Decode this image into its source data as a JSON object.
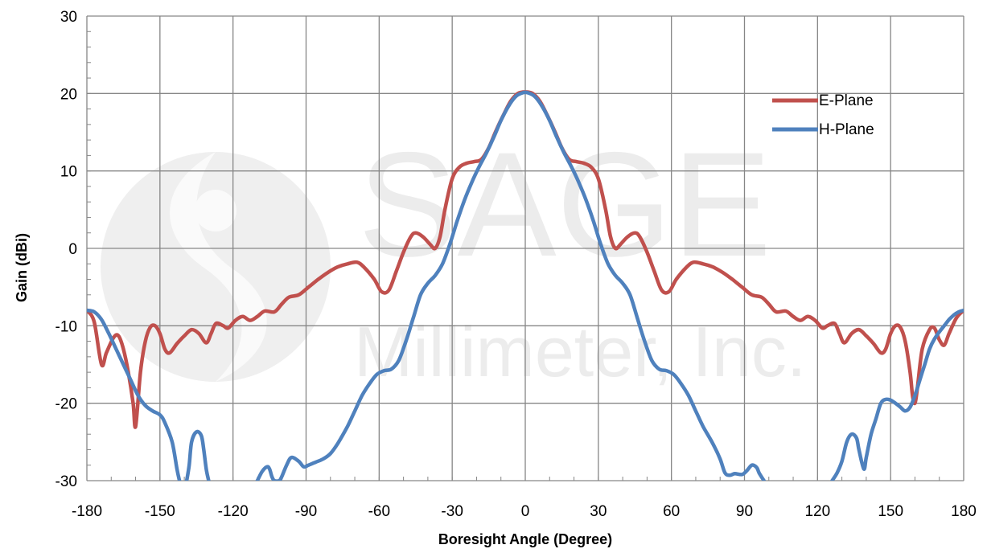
{
  "watermark": {
    "brand": "SAGE",
    "company": "Millimeter, Inc."
  },
  "colors": {
    "e_plane": "#c0504d",
    "h_plane": "#4f81bd",
    "grid": "#868686"
  },
  "chart_data": {
    "type": "line",
    "xlabel": "Boresight Angle (Degree)",
    "ylabel": "Gain (dBi)",
    "xlim": [
      -180,
      180
    ],
    "ylim": [
      -30,
      30
    ],
    "xticks": [
      -180,
      -150,
      -120,
      -90,
      -60,
      -30,
      0,
      30,
      60,
      90,
      120,
      150,
      180
    ],
    "yticks": [
      -30,
      -20,
      -10,
      0,
      10,
      20,
      30
    ],
    "grid": true,
    "legend_position": "top-right",
    "series": [
      {
        "name": "E-Plane",
        "color": "#c0504d",
        "points": [
          [
            -180,
            -8
          ],
          [
            -177,
            -9.5
          ],
          [
            -174,
            -15
          ],
          [
            -172,
            -13.5
          ],
          [
            -169,
            -11.5
          ],
          [
            -167,
            -11.3
          ],
          [
            -165,
            -13
          ],
          [
            -163,
            -16
          ],
          [
            -161,
            -20
          ],
          [
            -160,
            -23
          ],
          [
            -158,
            -16
          ],
          [
            -156,
            -12
          ],
          [
            -154,
            -10.2
          ],
          [
            -152,
            -10
          ],
          [
            -150,
            -11
          ],
          [
            -148,
            -13
          ],
          [
            -146,
            -13.5
          ],
          [
            -143,
            -12.3
          ],
          [
            -140,
            -11.3
          ],
          [
            -137,
            -10.5
          ],
          [
            -134,
            -11
          ],
          [
            -131,
            -12.2
          ],
          [
            -129,
            -11
          ],
          [
            -127,
            -9.7
          ],
          [
            -124,
            -10
          ],
          [
            -122,
            -10.3
          ],
          [
            -119,
            -9.3
          ],
          [
            -116,
            -8.8
          ],
          [
            -113,
            -9.3
          ],
          [
            -110,
            -8.8
          ],
          [
            -107,
            -8.1
          ],
          [
            -103,
            -8.2
          ],
          [
            -100,
            -7.2
          ],
          [
            -97,
            -6.3
          ],
          [
            -93,
            -6
          ],
          [
            -89,
            -5
          ],
          [
            -85,
            -4
          ],
          [
            -81,
            -3.1
          ],
          [
            -77,
            -2.4
          ],
          [
            -73,
            -2
          ],
          [
            -69,
            -1.8
          ],
          [
            -66,
            -2.5
          ],
          [
            -62,
            -4
          ],
          [
            -59,
            -5.6
          ],
          [
            -56,
            -5.4
          ],
          [
            -53,
            -3
          ],
          [
            -50,
            -0.5
          ],
          [
            -47,
            1.5
          ],
          [
            -45,
            2
          ],
          [
            -42,
            1.5
          ],
          [
            -39,
            0.5
          ],
          [
            -37,
            0
          ],
          [
            -35,
            1.5
          ],
          [
            -33,
            5
          ],
          [
            -30,
            9
          ],
          [
            -27,
            10.5
          ],
          [
            -24,
            11
          ],
          [
            -21,
            11.2
          ],
          [
            -18,
            11.5
          ],
          [
            -15,
            13
          ],
          [
            -12,
            15.2
          ],
          [
            -9,
            17.2
          ],
          [
            -6,
            19
          ],
          [
            -3,
            20
          ],
          [
            0,
            20.2
          ],
          [
            3,
            20
          ],
          [
            6,
            19
          ],
          [
            9,
            17.2
          ],
          [
            12,
            15.2
          ],
          [
            15,
            13
          ],
          [
            18,
            11.5
          ],
          [
            21,
            11.2
          ],
          [
            24,
            11
          ],
          [
            27,
            10.5
          ],
          [
            30,
            9
          ],
          [
            33,
            5
          ],
          [
            35,
            1.5
          ],
          [
            37,
            0
          ],
          [
            39,
            0.5
          ],
          [
            42,
            1.5
          ],
          [
            45,
            2
          ],
          [
            47,
            1.5
          ],
          [
            50,
            -0.5
          ],
          [
            53,
            -3
          ],
          [
            56,
            -5.4
          ],
          [
            59,
            -5.6
          ],
          [
            62,
            -4
          ],
          [
            66,
            -2.5
          ],
          [
            69,
            -1.8
          ],
          [
            73,
            -2
          ],
          [
            77,
            -2.4
          ],
          [
            81,
            -3.1
          ],
          [
            85,
            -4
          ],
          [
            89,
            -5
          ],
          [
            93,
            -6
          ],
          [
            97,
            -6.3
          ],
          [
            100,
            -7.2
          ],
          [
            103,
            -8.2
          ],
          [
            107,
            -8.1
          ],
          [
            110,
            -8.8
          ],
          [
            113,
            -9.3
          ],
          [
            116,
            -8.8
          ],
          [
            119,
            -9.3
          ],
          [
            122,
            -10.3
          ],
          [
            124,
            -10
          ],
          [
            127,
            -9.7
          ],
          [
            129,
            -11
          ],
          [
            131,
            -12.2
          ],
          [
            134,
            -11
          ],
          [
            137,
            -10.5
          ],
          [
            140,
            -11.3
          ],
          [
            143,
            -12.3
          ],
          [
            146,
            -13.5
          ],
          [
            148,
            -13
          ],
          [
            150,
            -11
          ],
          [
            152,
            -10
          ],
          [
            154,
            -10.2
          ],
          [
            156,
            -12
          ],
          [
            158,
            -16
          ],
          [
            159,
            -19
          ],
          [
            160,
            -20
          ],
          [
            161,
            -18
          ],
          [
            163,
            -13
          ],
          [
            166,
            -10.5
          ],
          [
            168,
            -10.3
          ],
          [
            170,
            -11.8
          ],
          [
            172,
            -12.5
          ],
          [
            174,
            -11
          ],
          [
            177,
            -9
          ],
          [
            180,
            -8
          ]
        ]
      },
      {
        "name": "H-Plane",
        "color": "#4f81bd",
        "segments": [
          [
            [
              -180,
              -8
            ],
            [
              -177,
              -8.2
            ],
            [
              -174,
              -9.2
            ],
            [
              -171,
              -11
            ],
            [
              -168,
              -13
            ],
            [
              -165,
              -15
            ],
            [
              -162,
              -17
            ],
            [
              -159,
              -19
            ],
            [
              -156,
              -20.3
            ],
            [
              -153,
              -21
            ],
            [
              -150,
              -21.5
            ],
            [
              -148,
              -22.5
            ],
            [
              -145,
              -25
            ],
            [
              -143,
              -28.5
            ],
            [
              -142,
              -30
            ]
          ],
          [
            [
              -139,
              -30
            ],
            [
              -138,
              -28
            ],
            [
              -137,
              -25
            ],
            [
              -135,
              -23.7
            ],
            [
              -133,
              -24.2
            ],
            [
              -132,
              -26
            ],
            [
              -131,
              -28.5
            ],
            [
              -130,
              -30
            ]
          ],
          [
            [
              -110,
              -30
            ],
            [
              -108,
              -28.8
            ],
            [
              -106,
              -28.2
            ],
            [
              -105,
              -28.5
            ],
            [
              -104,
              -29.5
            ],
            [
              -103,
              -30
            ],
            [
              -101,
              -30
            ],
            [
              -100,
              -29.5
            ],
            [
              -98,
              -28
            ],
            [
              -96,
              -27
            ],
            [
              -93,
              -27.5
            ],
            [
              -91,
              -28.2
            ],
            [
              -89,
              -28
            ],
            [
              -86,
              -27.6
            ],
            [
              -83,
              -27.2
            ],
            [
              -80,
              -26.5
            ],
            [
              -77,
              -25.2
            ],
            [
              -73,
              -23
            ],
            [
              -70,
              -21
            ],
            [
              -67,
              -19
            ],
            [
              -64,
              -17.5
            ],
            [
              -61,
              -16.3
            ],
            [
              -58,
              -15.8
            ],
            [
              -55,
              -15.6
            ],
            [
              -52,
              -14.5
            ],
            [
              -49,
              -12
            ],
            [
              -46,
              -9
            ],
            [
              -43,
              -6
            ],
            [
              -40,
              -4.5
            ],
            [
              -37,
              -3.5
            ],
            [
              -34,
              -2
            ],
            [
              -31,
              0.5
            ],
            [
              -28,
              3.5
            ],
            [
              -25,
              6.2
            ],
            [
              -22,
              8.5
            ],
            [
              -19,
              10.5
            ],
            [
              -16,
              12.3
            ],
            [
              -13,
              14.3
            ],
            [
              -10,
              16.5
            ],
            [
              -7,
              18.3
            ],
            [
              -4,
              19.6
            ],
            [
              -1,
              20.1
            ],
            [
              1,
              20.1
            ],
            [
              4,
              19.6
            ],
            [
              7,
              18.3
            ],
            [
              10,
              16.5
            ],
            [
              13,
              14.3
            ],
            [
              16,
              12.3
            ],
            [
              19,
              10.5
            ],
            [
              22,
              8.5
            ],
            [
              25,
              6.2
            ],
            [
              28,
              3.5
            ],
            [
              31,
              0.5
            ],
            [
              34,
              -2
            ],
            [
              37,
              -3.5
            ],
            [
              40,
              -4.5
            ],
            [
              43,
              -6
            ],
            [
              46,
              -9
            ],
            [
              49,
              -12
            ],
            [
              52,
              -14.5
            ],
            [
              55,
              -15.6
            ],
            [
              58,
              -15.8
            ],
            [
              61,
              -16.3
            ],
            [
              64,
              -17.5
            ],
            [
              67,
              -19
            ],
            [
              70,
              -21
            ],
            [
              73,
              -23
            ],
            [
              77,
              -25.2
            ],
            [
              80,
              -27.2
            ],
            [
              82,
              -29
            ],
            [
              84,
              -29.3
            ],
            [
              86,
              -29.1
            ],
            [
              89,
              -29.2
            ],
            [
              91,
              -28.7
            ],
            [
              93,
              -28
            ],
            [
              95,
              -28.3
            ],
            [
              96,
              -29
            ],
            [
              98,
              -30
            ]
          ],
          [
            [
              126,
              -30
            ],
            [
              128,
              -29
            ],
            [
              130,
              -27.5
            ],
            [
              132,
              -25
            ],
            [
              134,
              -24
            ],
            [
              136,
              -24.5
            ],
            [
              137,
              -26
            ],
            [
              139,
              -28.5
            ],
            [
              140,
              -27
            ],
            [
              142,
              -24
            ],
            [
              144,
              -22
            ],
            [
              146,
              -20
            ],
            [
              148,
              -19.5
            ],
            [
              150,
              -19.6
            ],
            [
              152,
              -20
            ],
            [
              154,
              -20.5
            ],
            [
              156,
              -21
            ],
            [
              158,
              -20.5
            ],
            [
              160,
              -19
            ],
            [
              162,
              -17
            ],
            [
              164,
              -15
            ],
            [
              166,
              -13
            ],
            [
              168,
              -11.7
            ],
            [
              170,
              -10.8
            ],
            [
              172,
              -10
            ],
            [
              174,
              -9.2
            ],
            [
              176,
              -8.6
            ],
            [
              178,
              -8.2
            ],
            [
              180,
              -8
            ]
          ]
        ]
      }
    ]
  }
}
